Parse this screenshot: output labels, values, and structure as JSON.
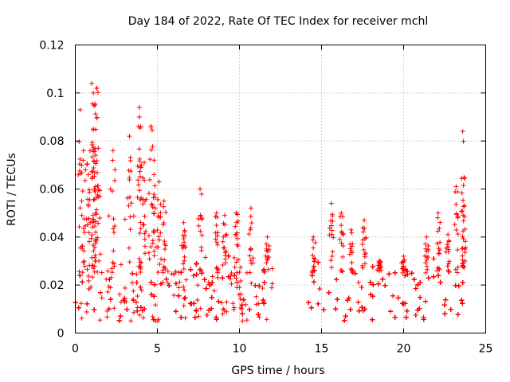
{
  "chart_data": {
    "type": "scatter",
    "title": "Day 184 of 2022, Rate Of TEC Index for receiver mchl",
    "xlabel": "GPS time / hours",
    "ylabel": "ROTI / TECUs",
    "xlim": [
      0,
      25
    ],
    "ylim": [
      0,
      0.12
    ],
    "x_ticks": [
      0,
      5,
      10,
      15,
      20,
      25
    ],
    "x_tick_labels": [
      "0",
      "5",
      "10",
      "15",
      "20",
      "25"
    ],
    "y_ticks": [
      0,
      0.02,
      0.04,
      0.06,
      0.08,
      0.1,
      0.12
    ],
    "y_tick_labels": [
      "0",
      "0.02",
      "0.04",
      "0.06",
      "0.08",
      "0.1",
      "0.12"
    ],
    "grid": true,
    "marker": "+",
    "color": "#ff0000",
    "series": [
      {
        "name": "ROTI",
        "segments": [
          {
            "x_start": 0.0,
            "x_end": 12.0,
            "baseline_low": 0.005,
            "baseline_high": 0.025
          },
          {
            "x_start": 14.2,
            "x_end": 24.0,
            "baseline_low": 0.005,
            "baseline_high": 0.025
          }
        ],
        "peaks": [
          {
            "x": 0.3,
            "y": 0.093
          },
          {
            "x": 0.5,
            "y": 0.076
          },
          {
            "x": 0.8,
            "y": 0.066
          },
          {
            "x": 1.0,
            "y": 0.104
          },
          {
            "x": 1.1,
            "y": 0.1
          },
          {
            "x": 1.2,
            "y": 0.095
          },
          {
            "x": 1.3,
            "y": 0.102
          },
          {
            "x": 1.1,
            "y": 0.085
          },
          {
            "x": 1.4,
            "y": 0.077
          },
          {
            "x": 2.3,
            "y": 0.076
          },
          {
            "x": 3.3,
            "y": 0.082
          },
          {
            "x": 3.9,
            "y": 0.094
          },
          {
            "x": 3.9,
            "y": 0.09
          },
          {
            "x": 4.2,
            "y": 0.071
          },
          {
            "x": 4.6,
            "y": 0.086
          },
          {
            "x": 4.8,
            "y": 0.072
          },
          {
            "x": 5.1,
            "y": 0.063
          },
          {
            "x": 5.4,
            "y": 0.055
          },
          {
            "x": 6.6,
            "y": 0.046
          },
          {
            "x": 7.6,
            "y": 0.06
          },
          {
            "x": 8.6,
            "y": 0.05
          },
          {
            "x": 9.1,
            "y": 0.049
          },
          {
            "x": 9.8,
            "y": 0.05
          },
          {
            "x": 10.7,
            "y": 0.052
          },
          {
            "x": 11.7,
            "y": 0.04
          },
          {
            "x": 14.5,
            "y": 0.04
          },
          {
            "x": 15.6,
            "y": 0.054
          },
          {
            "x": 16.2,
            "y": 0.05
          },
          {
            "x": 16.8,
            "y": 0.043
          },
          {
            "x": 17.6,
            "y": 0.047
          },
          {
            "x": 18.5,
            "y": 0.03
          },
          {
            "x": 20.0,
            "y": 0.032
          },
          {
            "x": 21.4,
            "y": 0.04
          },
          {
            "x": 22.1,
            "y": 0.05
          },
          {
            "x": 22.7,
            "y": 0.041
          },
          {
            "x": 23.2,
            "y": 0.061
          },
          {
            "x": 23.6,
            "y": 0.084
          },
          {
            "x": 23.7,
            "y": 0.053
          }
        ]
      }
    ]
  }
}
